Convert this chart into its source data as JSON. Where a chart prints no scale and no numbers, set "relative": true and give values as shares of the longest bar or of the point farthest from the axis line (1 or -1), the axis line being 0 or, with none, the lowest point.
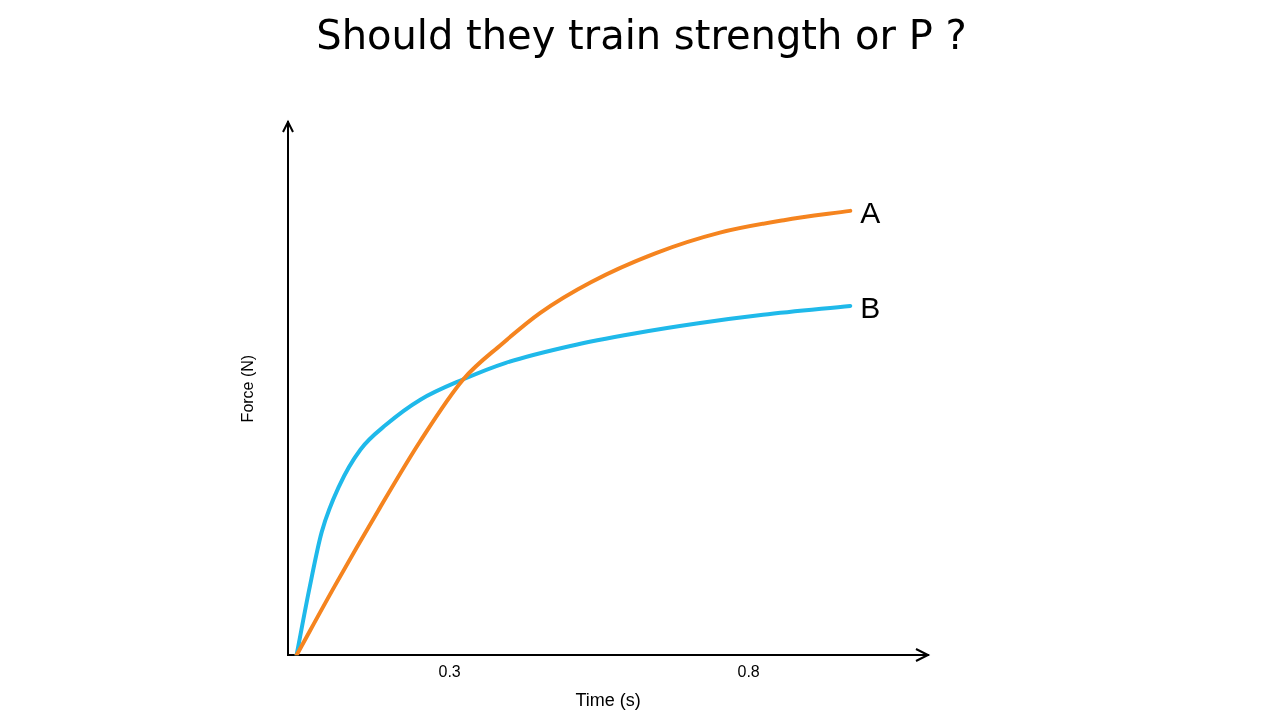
{
  "chart_data": {
    "type": "line",
    "title": "Should they train strength or P ?",
    "xlabel": "Time (s)",
    "ylabel": "Force (N)",
    "relative": true,
    "xlim": [
      0.03,
      1.1
    ],
    "xticks": [
      0.3,
      0.8
    ],
    "grid": false,
    "marker": "none",
    "line_style": "solid",
    "series": [
      {
        "name": "A",
        "color": "#f5841f",
        "x": [
          0.044,
          0.108,
          0.18,
          0.251,
          0.323,
          0.387,
          0.451,
          0.537,
          0.645,
          0.752,
          0.859,
          0.97
        ],
        "values": [
          0,
          0.156,
          0.324,
          0.482,
          0.621,
          0.7,
          0.77,
          0.84,
          0.905,
          0.951,
          0.979,
          1
        ]
      },
      {
        "name": "B",
        "color": "#1fb9ea",
        "x": [
          0.044,
          0.065,
          0.086,
          0.115,
          0.151,
          0.194,
          0.251,
          0.323,
          0.394,
          0.502,
          0.609,
          0.716,
          0.824,
          0.97
        ],
        "values": [
          0,
          0.147,
          0.277,
          0.38,
          0.463,
          0.519,
          0.575,
          0.621,
          0.658,
          0.696,
          0.724,
          0.747,
          0.766,
          0.786
        ]
      }
    ]
  }
}
